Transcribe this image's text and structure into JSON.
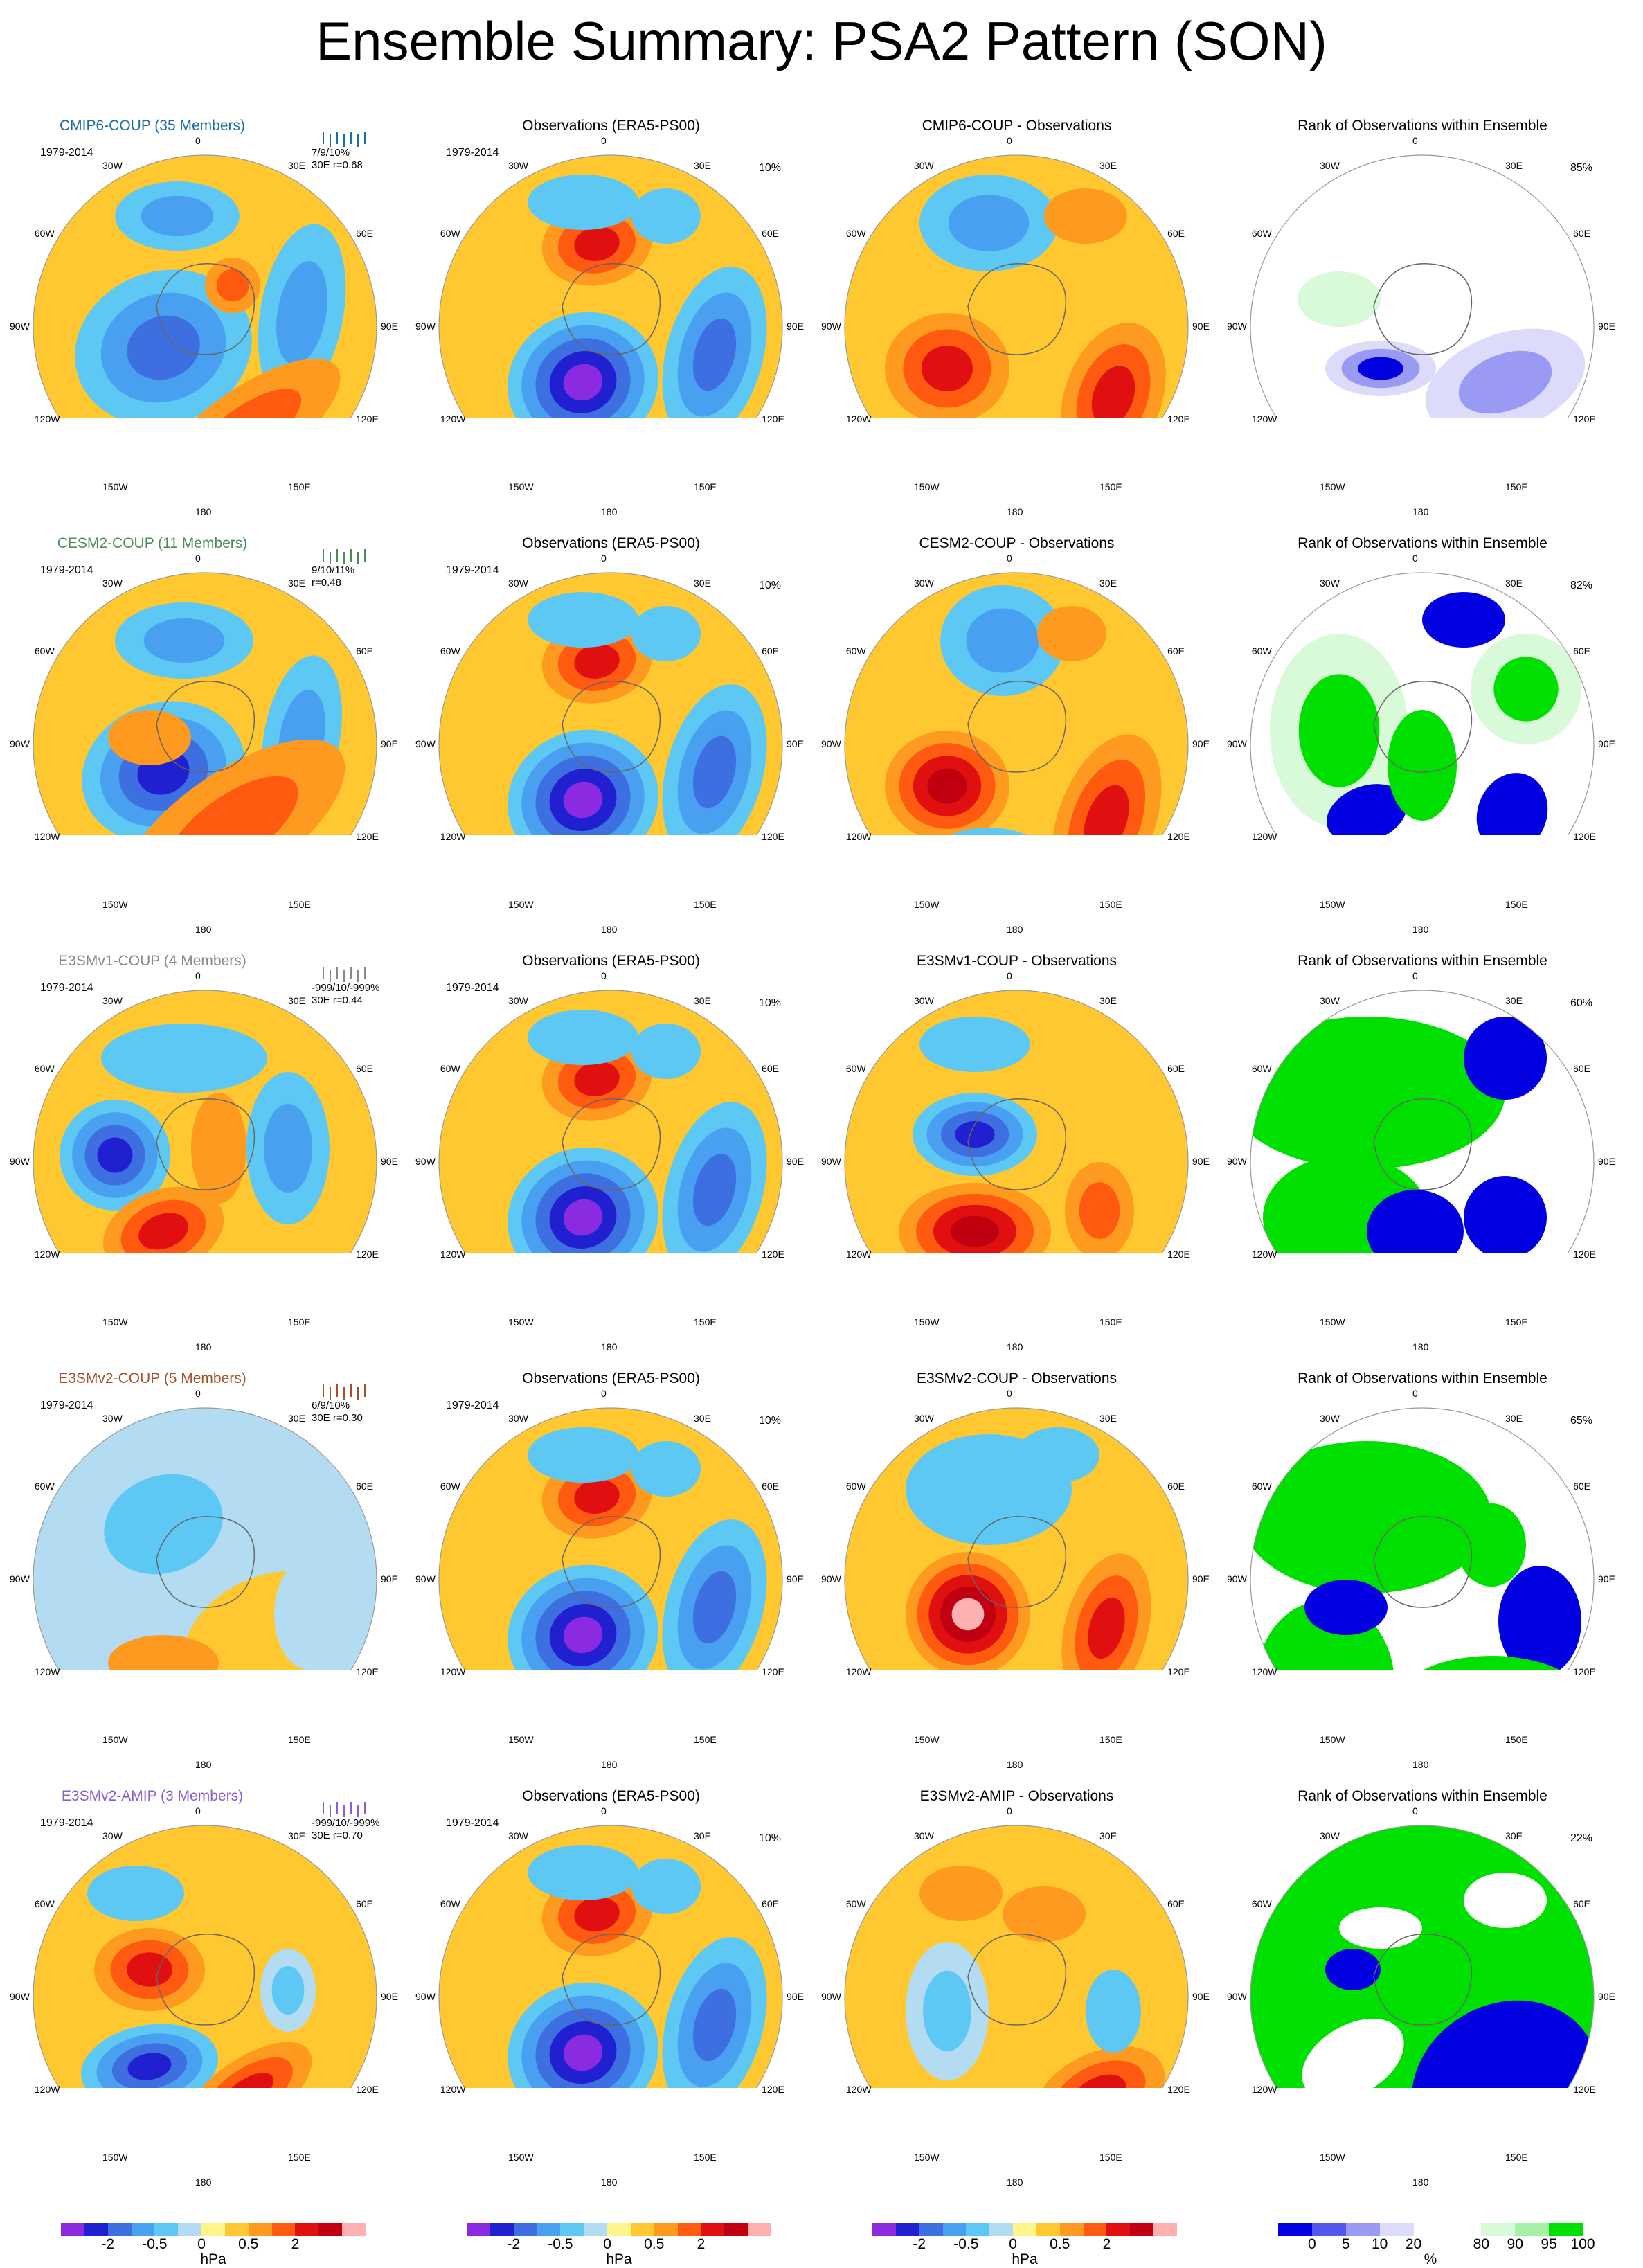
{
  "title": "Ensemble Summary: PSA2 Pattern (SON)",
  "period": "1979-2014",
  "lon_labels": [
    "0",
    "30E",
    "60E",
    "90E",
    "120E",
    "150E",
    "180",
    "150W",
    "120W",
    "90W",
    "60W",
    "30W"
  ],
  "colors": {
    "model_cmip6": "#1f6f9e",
    "model_cesm2": "#4f8a5a",
    "model_e3smv1": "#888888",
    "model_e3smv2coup": "#a0522d",
    "model_e3smv2amip": "#8a60d0"
  },
  "rows": [
    {
      "model_title": "CMIP6-COUP (35 Members)",
      "model_color": "#1f6f9e",
      "stats_line1": "7/9/10%",
      "stats_line2": "30E  r=0.68",
      "obs_title": "Observations (ERA5-PS00)",
      "obs_pct": "10%",
      "diff_title": "CMIP6-COUP - Observations",
      "rank_title": "Rank of Observations within Ensemble",
      "rank_pct": "85%"
    },
    {
      "model_title": "CESM2-COUP (11 Members)",
      "model_color": "#4f8a5a",
      "stats_line1": "9/10/11%",
      "stats_line2": "r=0.48",
      "obs_title": "Observations (ERA5-PS00)",
      "obs_pct": "10%",
      "diff_title": "CESM2-COUP - Observations",
      "rank_title": "Rank of Observations within Ensemble",
      "rank_pct": "82%"
    },
    {
      "model_title": "E3SMv1-COUP (4 Members)",
      "model_color": "#888888",
      "stats_line1": "-999/10/-999%",
      "stats_line2": "30E  r=0.44",
      "obs_title": "Observations (ERA5-PS00)",
      "obs_pct": "10%",
      "diff_title": "E3SMv1-COUP - Observations",
      "rank_title": "Rank of Observations within Ensemble",
      "rank_pct": "60%"
    },
    {
      "model_title": "E3SMv2-COUP (5 Members)",
      "model_color": "#a0522d",
      "stats_line1": "6/9/10%",
      "stats_line2": "30E  r=0.30",
      "obs_title": "Observations (ERA5-PS00)",
      "obs_pct": "10%",
      "diff_title": "E3SMv2-COUP - Observations",
      "rank_title": "Rank of Observations within Ensemble",
      "rank_pct": "65%"
    },
    {
      "model_title": "E3SMv2-AMIP (3 Members)",
      "model_color": "#8a60d0",
      "stats_line1": "-999/10/-999%",
      "stats_line2": "30E  r=0.70",
      "obs_title": "Observations (ERA5-PS00)",
      "obs_pct": "10%",
      "diff_title": "E3SMv2-AMIP - Observations",
      "rank_title": "Rank of Observations within Ensemble",
      "rank_pct": "22%"
    }
  ],
  "colorbar_hpa": {
    "unit": "hPa",
    "ticks": [
      "-2",
      "-0.5",
      "0",
      "0.5",
      "2"
    ],
    "colors": [
      "#8a2be2",
      "#2020d0",
      "#3d6fe0",
      "#4aa0f0",
      "#5ec8f5",
      "#b3dcf2",
      "#fff48a",
      "#ffc830",
      "#ff9a20",
      "#ff5a10",
      "#e01010",
      "#c00010",
      "#ffb0b0"
    ]
  },
  "colorbar_rank": {
    "unit": "%",
    "ticks": [
      "0",
      "5",
      "10",
      "20",
      "80",
      "90",
      "95",
      "100"
    ],
    "colors": [
      "#0000e0",
      "#5555f0",
      "#9a9af5",
      "#dcdcfa",
      "#ffffff",
      "#ffffff",
      "#d8fad8",
      "#a8f0a8",
      "#00e000"
    ]
  }
}
